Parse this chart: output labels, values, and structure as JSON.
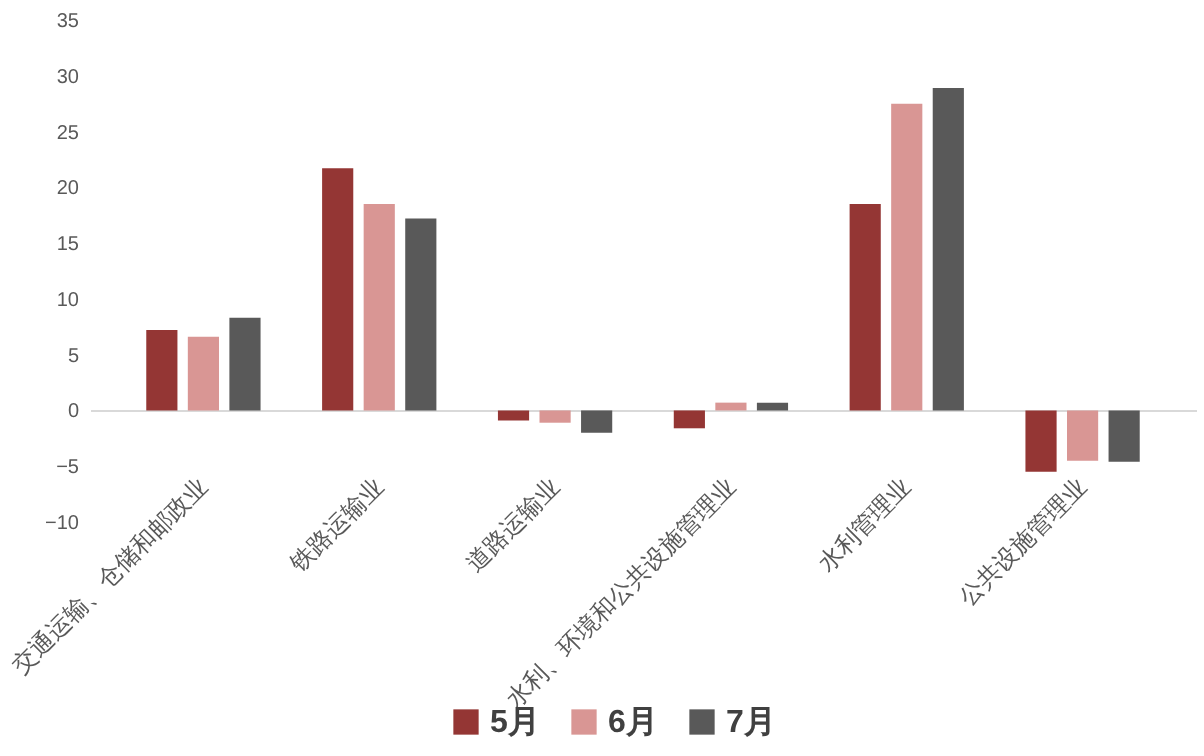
{
  "chart_data": {
    "type": "bar",
    "categories": [
      "交通运输、仓储和邮政业",
      "铁路运输业",
      "道路运输业",
      "水利、环境和公共设施管理业",
      "水利管理业",
      "公共设施管理业"
    ],
    "series": [
      {
        "name": "5月",
        "color": "#943634",
        "values": [
          7.2,
          21.7,
          -0.9,
          -1.6,
          18.5,
          -5.5
        ]
      },
      {
        "name": "6月",
        "color": "#d99694",
        "values": [
          6.6,
          18.5,
          -1.1,
          0.7,
          27.5,
          -4.5
        ]
      },
      {
        "name": "7月",
        "color": "#595959",
        "values": [
          8.3,
          17.2,
          -2.0,
          0.7,
          28.9,
          -4.6
        ]
      }
    ],
    "ylim": [
      -10,
      35
    ],
    "yticks": [
      -10,
      -5,
      0,
      5,
      10,
      15,
      20,
      25,
      30,
      35
    ],
    "legend": "bottom"
  }
}
